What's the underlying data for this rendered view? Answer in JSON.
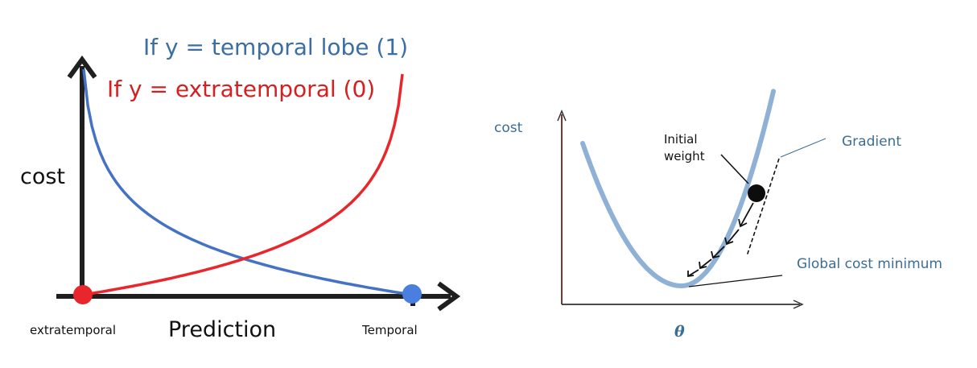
{
  "colors": {
    "blue_curve": "#4472c4",
    "red_curve": "#e8262b",
    "blue_text": "#3a6ea5",
    "red_text": "#d42020",
    "red_dot": "#e8262b",
    "blue_dot": "#4a7fe0",
    "bowl": "#8fb1d6",
    "label_teal": "#3c6d93",
    "axis_dark": "#1f1f1f",
    "axis_red": "#6b1e1e"
  },
  "left_panel": {
    "legend_temporal": "If y = temporal lobe (1)",
    "legend_extratemporal": "If y = extratemporal (0)",
    "y_label": "cost",
    "x_label": "Prediction",
    "left_end_label": "extratemporal",
    "right_end_label": "Temporal"
  },
  "right_panel": {
    "y_label": "cost",
    "x_label": "θ",
    "initial_weight_line1": "Initial",
    "initial_weight_line2": "weight",
    "gradient_label": "Gradient",
    "minimum_label": "Global cost minimum"
  }
}
